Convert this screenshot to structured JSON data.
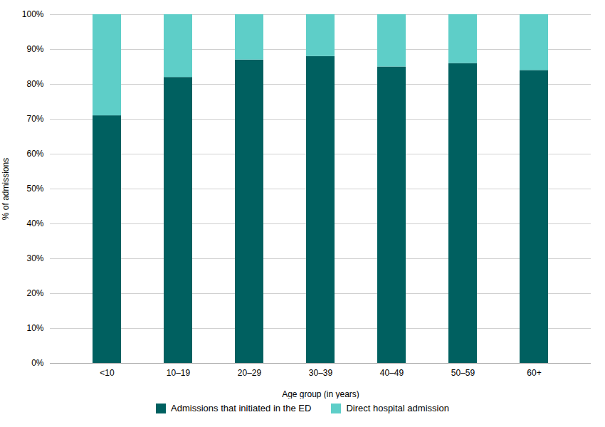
{
  "chart_data": {
    "type": "bar",
    "stacked": true,
    "categories": [
      "<10",
      "10–19",
      "20–29",
      "30–39",
      "40–49",
      "50–59",
      "60+"
    ],
    "series": [
      {
        "name": "Admissions that initiated in the ED",
        "color": "#006060",
        "values": [
          71,
          82,
          87,
          88,
          85,
          86,
          84
        ]
      },
      {
        "name": "Direct hospital admission",
        "color": "#5ecec8",
        "values": [
          29,
          18,
          13,
          12,
          15,
          14,
          16
        ]
      }
    ],
    "xlabel": "Age group (in years)",
    "ylabel": "% of admissions",
    "ylim": [
      0,
      100
    ],
    "yticks": [
      {
        "value": 0,
        "label": "0%"
      },
      {
        "value": 10,
        "label": "10%"
      },
      {
        "value": 20,
        "label": "20%"
      },
      {
        "value": 30,
        "label": "30%"
      },
      {
        "value": 40,
        "label": "40%"
      },
      {
        "value": 50,
        "label": "50%"
      },
      {
        "value": 60,
        "label": "60%"
      },
      {
        "value": 70,
        "label": "70%"
      },
      {
        "value": 80,
        "label": "80%"
      },
      {
        "value": 90,
        "label": "90%"
      },
      {
        "value": 100,
        "label": "100%"
      }
    ],
    "grid": true,
    "legend": "bottom"
  }
}
